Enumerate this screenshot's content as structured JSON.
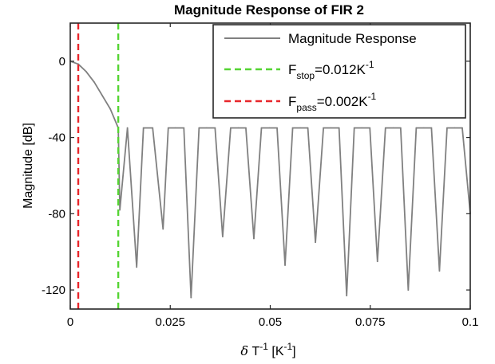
{
  "chart_data": {
    "type": "line",
    "title": "Magnitude Response of FIR 2",
    "xlabel": {
      "symbol": "δ",
      "base": "T",
      "base_exp": "-1",
      "unit_open": "[K",
      "unit_exp": "-1",
      "unit_close": "]"
    },
    "ylabel": "Magnitude [dB]",
    "xlim": [
      0,
      0.1
    ],
    "ylim": [
      -130,
      20
    ],
    "xticks": [
      0,
      0.025,
      0.05,
      0.075,
      0.1
    ],
    "xtick_labels": [
      "0",
      "0.025",
      "0.05",
      "0.075",
      "0.1"
    ],
    "yticks": [
      0,
      -40,
      -80,
      -120
    ],
    "ytick_labels": [
      "0",
      "-40",
      "-80",
      "-120"
    ],
    "grid": false,
    "legend_position": "top-right",
    "series": [
      {
        "name": "Magnitude Response",
        "style": "solid",
        "color": "#808080",
        "x": [
          0,
          0.002,
          0.004,
          0.006,
          0.008,
          0.01,
          0.012,
          0.0124,
          0.0143,
          0.0166,
          0.0183,
          0.0206,
          0.0232,
          0.0245,
          0.0262,
          0.0284,
          0.0302,
          0.0322,
          0.0341,
          0.0362,
          0.0381,
          0.0401,
          0.042,
          0.0439,
          0.0459,
          0.0478,
          0.0498,
          0.0517,
          0.0537,
          0.0556,
          0.0575,
          0.0594,
          0.0613,
          0.0633,
          0.0652,
          0.0672,
          0.0691,
          0.071,
          0.0729,
          0.0749,
          0.0768,
          0.0788,
          0.0807,
          0.0826,
          0.0845,
          0.0865,
          0.0884,
          0.0903,
          0.0923,
          0.0942,
          0.0961,
          0.098,
          0.1
        ],
        "y": [
          0,
          -1.5,
          -5.5,
          -11,
          -18,
          -25,
          -35,
          -78,
          -35,
          -108,
          -35,
          -35,
          -88,
          -35,
          -35,
          -35,
          -124,
          -35,
          -35,
          -35,
          -92,
          -35,
          -35,
          -35,
          -93,
          -35,
          -35,
          -35,
          -107,
          -35,
          -35,
          -35,
          -95,
          -35,
          -35,
          -35,
          -123,
          -35,
          -35,
          -35,
          -105,
          -35,
          -35,
          -35,
          -120,
          -35,
          -35,
          -35,
          -110,
          -35,
          -35,
          -35,
          -80
        ]
      },
      {
        "name": "F_stop=0.012K^-1",
        "label_main": "F",
        "label_sub": "stop",
        "label_value": "=0.012K",
        "label_exp": "-1",
        "style": "dashed",
        "color": "#55d433",
        "x": [
          0.012,
          0.012
        ],
        "y": [
          -130,
          20
        ]
      },
      {
        "name": "F_pass=0.002K^-1",
        "label_main": "F",
        "label_sub": "pass",
        "label_value": "=0.002K",
        "label_exp": "-1",
        "style": "dashed",
        "color": "#e8262b",
        "x": [
          0.002,
          0.002
        ],
        "y": [
          -130,
          20
        ]
      }
    ]
  }
}
